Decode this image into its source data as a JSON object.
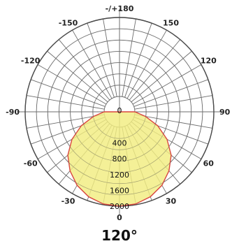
{
  "chart_data": {
    "type": "polar",
    "angle_labels": [
      {
        "angle": 0,
        "label": "0"
      },
      {
        "angle": 30,
        "label": "30"
      },
      {
        "angle": -30,
        "label": "-30"
      },
      {
        "angle": 60,
        "label": "60"
      },
      {
        "angle": -60,
        "label": "-60"
      },
      {
        "angle": 90,
        "label": "90"
      },
      {
        "angle": -90,
        "label": "-90"
      },
      {
        "angle": 120,
        "label": "120"
      },
      {
        "angle": -120,
        "label": "-120"
      },
      {
        "angle": 150,
        "label": "150"
      },
      {
        "angle": -150,
        "label": "-150"
      },
      {
        "angle": 180,
        "label": "-/+180"
      }
    ],
    "radial_ticks": [
      "400",
      "800",
      "1200",
      "1600",
      "2000"
    ],
    "radial_values": [
      400,
      800,
      1200,
      1600,
      2000
    ],
    "rlim": [
      0,
      2000
    ],
    "center_label": "0",
    "angle_grid_step_deg": 10,
    "series": [
      {
        "angles_deg": [
          0,
          10,
          20,
          30,
          40,
          50,
          60,
          70,
          80,
          90
        ],
        "values": [
          2000,
          1980,
          1900,
          1760,
          1560,
          1320,
          1000,
          640,
          280,
          0
        ]
      }
    ],
    "fill_color": "#f2ed80",
    "stroke_color": "#d9463f",
    "grid_color": "#6e6e6e",
    "beam_angle_label": "120°"
  }
}
